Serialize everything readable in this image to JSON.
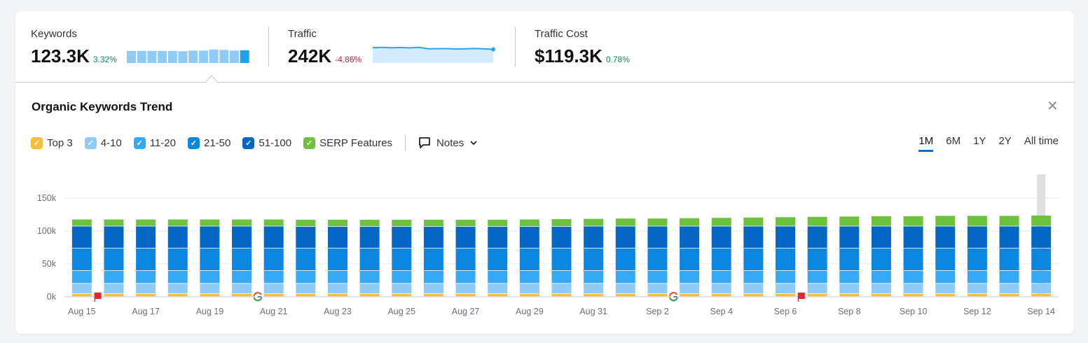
{
  "metrics": [
    {
      "label": "Keywords",
      "value": "123.3K",
      "delta": "3.32%",
      "direction": "up"
    },
    {
      "label": "Traffic",
      "value": "242K",
      "delta": "-4.86%",
      "direction": "down"
    },
    {
      "label": "Traffic Cost",
      "value": "$119.3K",
      "delta": "0.78%",
      "direction": "up"
    }
  ],
  "panel": {
    "title": "Organic Keywords Trend",
    "close_icon": "close-icon"
  },
  "legend": [
    {
      "label": "Top 3",
      "color": "#f5bf3b"
    },
    {
      "label": "4-10",
      "color": "#8ecbf8"
    },
    {
      "label": "11-20",
      "color": "#35a9f5"
    },
    {
      "label": "21-50",
      "color": "#0b87e0"
    },
    {
      "label": "51-100",
      "color": "#0467c4"
    },
    {
      "label": "SERP Features",
      "color": "#6cc23a"
    }
  ],
  "notes": {
    "label": "Notes",
    "icon": "comment-icon",
    "chevron": "chevron-down-icon"
  },
  "periods": [
    {
      "label": "1M",
      "active": true
    },
    {
      "label": "6M",
      "active": false
    },
    {
      "label": "1Y",
      "active": false
    },
    {
      "label": "2Y",
      "active": false
    },
    {
      "label": "All time",
      "active": false
    }
  ],
  "chart_data": {
    "type": "bar",
    "stacked": true,
    "y_ticks": [
      "0k",
      "50k",
      "100k",
      "150k"
    ],
    "ylim": [
      0,
      180000
    ],
    "x_tick_labels": [
      "Aug 15",
      "Aug 17",
      "Aug 19",
      "Aug 21",
      "Aug 23",
      "Aug 25",
      "Aug 27",
      "Aug 29",
      "Aug 31",
      "Sep 2",
      "Sep 4",
      "Sep 6",
      "Sep 8",
      "Sep 10",
      "Sep 12",
      "Sep 14"
    ],
    "categories": [
      "Aug 15",
      "Aug 16",
      "Aug 17",
      "Aug 18",
      "Aug 19",
      "Aug 20",
      "Aug 21",
      "Aug 22",
      "Aug 23",
      "Aug 24",
      "Aug 25",
      "Aug 26",
      "Aug 27",
      "Aug 28",
      "Aug 29",
      "Aug 30",
      "Aug 31",
      "Sep 1",
      "Sep 2",
      "Sep 3",
      "Sep 4",
      "Sep 5",
      "Sep 6",
      "Sep 7",
      "Sep 8",
      "Sep 9",
      "Sep 10",
      "Sep 11",
      "Sep 12",
      "Sep 13",
      "Sep 14"
    ],
    "series": [
      {
        "name": "Top 3",
        "values": [
          4500,
          4500,
          4500,
          4500,
          4500,
          4500,
          4500,
          4500,
          4500,
          4500,
          4500,
          4500,
          4500,
          4500,
          4500,
          4500,
          4500,
          4500,
          4500,
          4500,
          4500,
          4500,
          4500,
          4500,
          4500,
          4500,
          4500,
          4500,
          4500,
          4500,
          4500
        ]
      },
      {
        "name": "4-10",
        "values": [
          15500,
          15500,
          15500,
          15500,
          15500,
          15500,
          15500,
          15500,
          15500,
          15500,
          15500,
          15500,
          15500,
          15500,
          15500,
          15500,
          15500,
          15500,
          15500,
          15500,
          15500,
          15500,
          15500,
          15500,
          15500,
          15500,
          15500,
          15500,
          15500,
          15500,
          15500
        ]
      },
      {
        "name": "11-20",
        "values": [
          19500,
          19500,
          19500,
          19500,
          19500,
          19500,
          19500,
          19500,
          19500,
          19500,
          19500,
          19500,
          19500,
          19500,
          19500,
          19500,
          19500,
          19500,
          19500,
          19500,
          19500,
          19500,
          19500,
          19500,
          19500,
          19500,
          19500,
          19500,
          19500,
          19500,
          19500
        ]
      },
      {
        "name": "21-50",
        "values": [
          34000,
          34000,
          34000,
          34000,
          34000,
          34000,
          34000,
          34000,
          34000,
          34000,
          34000,
          34000,
          34000,
          34000,
          34000,
          34000,
          34000,
          34000,
          34000,
          34000,
          34000,
          34000,
          34000,
          34000,
          34000,
          34000,
          34000,
          34000,
          34000,
          34000,
          34000
        ]
      },
      {
        "name": "51-100",
        "values": [
          33500,
          33500,
          33500,
          33500,
          33500,
          33500,
          33500,
          33000,
          33000,
          33000,
          33000,
          33000,
          33000,
          33000,
          33000,
          33000,
          33500,
          33500,
          33500,
          33500,
          33500,
          33500,
          33500,
          33500,
          33500,
          33500,
          33500,
          33500,
          33500,
          33500,
          33500
        ]
      },
      {
        "name": "SERP Features",
        "values": [
          10500,
          10500,
          10500,
          10500,
          10500,
          10500,
          10500,
          10500,
          10500,
          10500,
          10500,
          10500,
          10500,
          10500,
          11000,
          11500,
          11500,
          12000,
          12000,
          12500,
          13000,
          13500,
          14000,
          14500,
          15000,
          15500,
          15500,
          16000,
          16000,
          16000,
          16500
        ]
      }
    ],
    "annotations": [
      {
        "type": "flag",
        "x": "Aug 16",
        "color": "#e0282e"
      },
      {
        "type": "google",
        "x": "Aug 21"
      },
      {
        "type": "google",
        "x": "Sep 3"
      },
      {
        "type": "flag",
        "x": "Sep 7",
        "color": "#e0282e"
      }
    ],
    "highlight": "Sep 14",
    "grid": true
  },
  "sparklines": {
    "keywords": [
      0.72,
      0.72,
      0.72,
      0.72,
      0.72,
      0.7,
      0.74,
      0.74,
      0.8,
      0.78,
      0.74,
      0.76
    ],
    "traffic": [
      0.84,
      0.86,
      0.84,
      0.85,
      0.83,
      0.86,
      0.78,
      0.79,
      0.79,
      0.77,
      0.78,
      0.8,
      0.78,
      0.75
    ]
  }
}
